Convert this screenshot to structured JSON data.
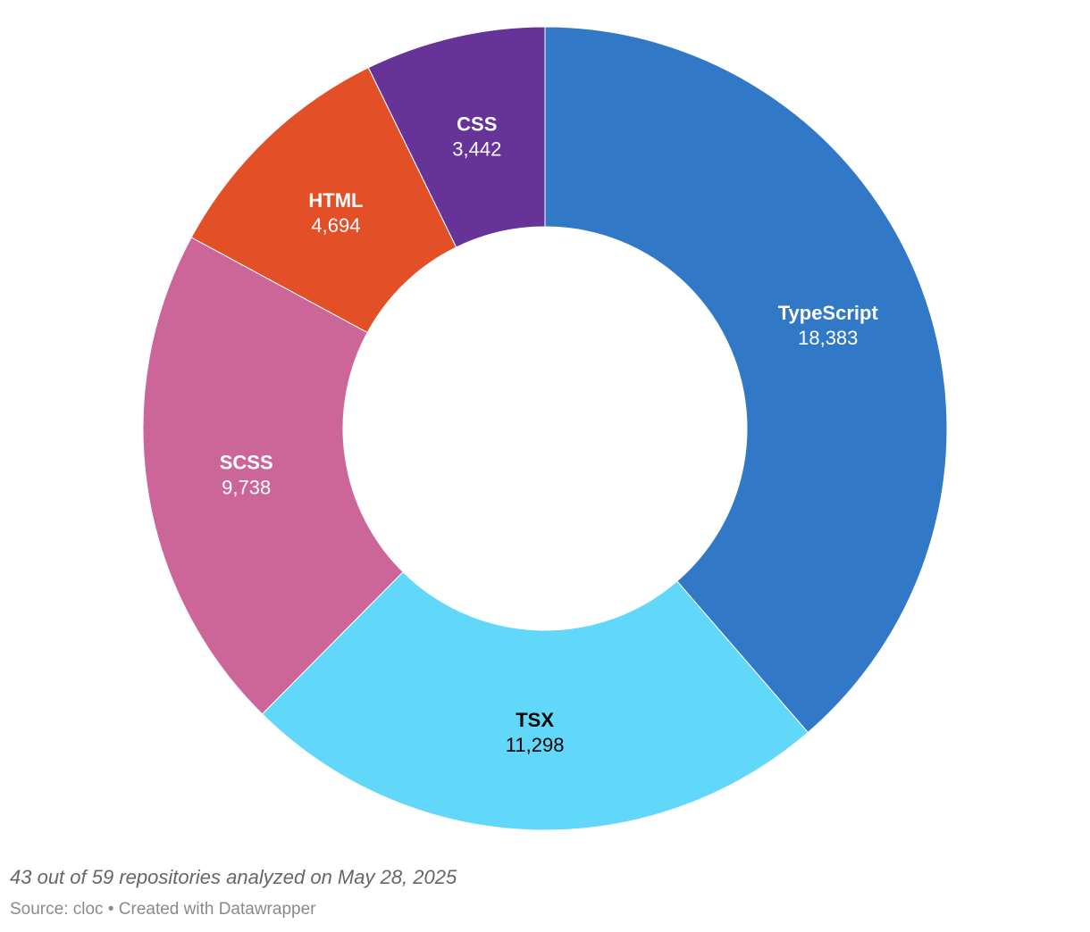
{
  "chart_data": {
    "type": "pie",
    "donut": true,
    "categories": [
      "TypeScript",
      "TSX",
      "SCSS",
      "HTML",
      "CSS"
    ],
    "values": [
      18383,
      11298,
      9738,
      4694,
      3442
    ],
    "value_labels": [
      "18,383",
      "11,298",
      "9,738",
      "4,694",
      "3,442"
    ],
    "colors": [
      "#3179c7",
      "#61d8fa",
      "#cc6699",
      "#e34f26",
      "#663399"
    ],
    "label_colors": [
      "#ffffff",
      "#000000",
      "#ffffff",
      "#ffffff",
      "#ffffff"
    ],
    "start": "12 o'clock",
    "direction": "clockwise",
    "legend": "none"
  },
  "notes": "43 out of 59 repositories analyzed on May 28, 2025",
  "footer": {
    "source": "Source: cloc",
    "separator": " • ",
    "credit": "Created with Datawrapper"
  }
}
